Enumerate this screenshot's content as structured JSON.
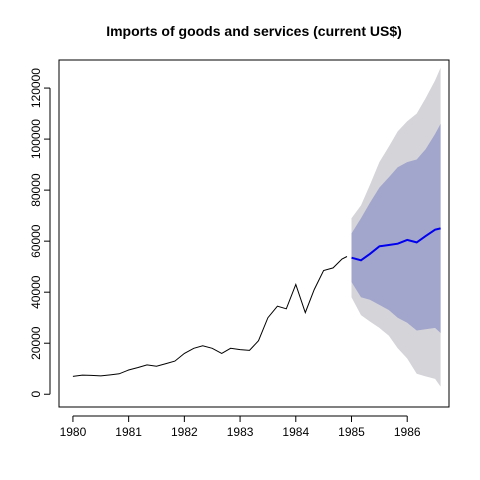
{
  "chart_data": {
    "type": "line",
    "title": "Imports of goods and services (current US$)",
    "xlabel": "",
    "ylabel": "",
    "xlim": [
      1979.75,
      1986.75
    ],
    "ylim": [
      -5000,
      131000
    ],
    "x_ticks": [
      1980,
      1981,
      1982,
      1983,
      1984,
      1985,
      1986
    ],
    "y_ticks": [
      0,
      20000,
      40000,
      60000,
      80000,
      100000,
      120000
    ],
    "grid": false,
    "legend": "none",
    "colors": {
      "history": "#000000",
      "forecast": "#0000ee",
      "band_80": "#a2a5cc",
      "band_95": "#d4d4d9"
    },
    "history": {
      "x": [
        1980.0,
        1980.17,
        1980.33,
        1980.5,
        1980.67,
        1980.83,
        1981.0,
        1981.17,
        1981.33,
        1981.5,
        1981.67,
        1981.83,
        1982.0,
        1982.17,
        1982.33,
        1982.5,
        1982.67,
        1982.83,
        1983.0,
        1983.17,
        1983.33,
        1983.5,
        1983.67,
        1983.83,
        1984.0,
        1984.17,
        1984.33,
        1984.5,
        1984.67,
        1984.83,
        1984.92
      ],
      "y": [
        7000,
        7500,
        7400,
        7200,
        7600,
        8000,
        9500,
        10500,
        11500,
        11000,
        12000,
        13000,
        16000,
        18000,
        19000,
        18000,
        16000,
        18000,
        17500,
        17200,
        21000,
        30000,
        34500,
        33500,
        43000,
        32000,
        41000,
        48500,
        49500,
        53000,
        54000
      ]
    },
    "forecast": {
      "x": [
        1985.0,
        1985.17,
        1985.33,
        1985.5,
        1985.67,
        1985.83,
        1986.0,
        1986.17,
        1986.33,
        1986.5,
        1986.6
      ],
      "mean": [
        53500,
        52500,
        55000,
        58000,
        58500,
        59000,
        60500,
        59500,
        62000,
        64500,
        65000
      ],
      "lo80": [
        44000,
        38000,
        37000,
        35000,
        33000,
        30000,
        28000,
        25000,
        25500,
        26000,
        24000
      ],
      "hi80": [
        63000,
        69000,
        75000,
        81000,
        85000,
        89000,
        91000,
        92000,
        96000,
        102000,
        106000
      ],
      "lo95": [
        38000,
        31000,
        28500,
        26000,
        23000,
        18000,
        14000,
        8000,
        7000,
        6000,
        3000
      ],
      "hi95": [
        69000,
        74000,
        82000,
        91000,
        97000,
        103000,
        107000,
        110000,
        116000,
        123000,
        128000
      ]
    }
  }
}
